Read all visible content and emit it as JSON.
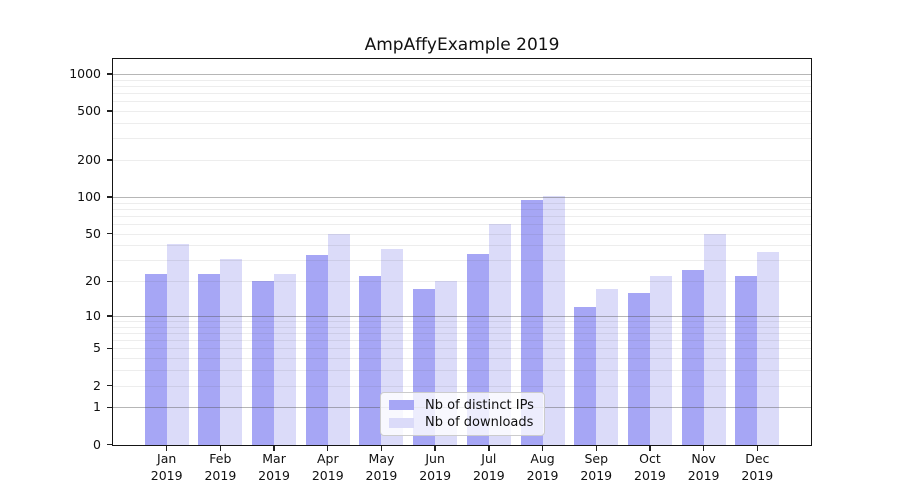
{
  "chart_data": {
    "type": "bar",
    "title": "AmpAffyExample 2019",
    "year_label": "2019",
    "categories": [
      "Jan",
      "Feb",
      "Mar",
      "Apr",
      "May",
      "Jun",
      "Jul",
      "Aug",
      "Sep",
      "Oct",
      "Nov",
      "Dec"
    ],
    "series": [
      {
        "name": "Nb of distinct IPs",
        "color": "#a6a6f5",
        "values": [
          23,
          23,
          20,
          33,
          22,
          17,
          34,
          94,
          12,
          16,
          25,
          22
        ]
      },
      {
        "name": "Nb of downloads",
        "color": "#dbdbf9",
        "values": [
          41,
          31,
          23,
          50,
          37,
          20,
          60,
          102,
          17,
          22,
          50,
          35
        ]
      }
    ],
    "xlabel": "",
    "ylabel": "",
    "y_scale": "log1p",
    "ylim": [
      0,
      1300
    ],
    "y_ticks": [
      0,
      1,
      2,
      5,
      10,
      20,
      50,
      100,
      200,
      500,
      1000
    ],
    "y_major_gridlines": [
      1,
      10,
      100,
      1000
    ],
    "y_minor_gridlines": [
      2,
      3,
      4,
      5,
      6,
      7,
      8,
      9,
      20,
      30,
      40,
      50,
      60,
      70,
      80,
      90,
      200,
      300,
      400,
      500,
      600,
      700,
      800,
      900
    ],
    "grid": "horizontal",
    "legend_position": "inside lower center"
  },
  "style": {
    "bar_color_ips": "#a6a6f5",
    "bar_color_downloads": "#dbdbf9",
    "grid_major_color": "rgba(80,80,80,0.42)",
    "grid_minor_color": "rgba(80,80,80,0.10)",
    "spine_color": "#151515",
    "text_color": "#111111",
    "legend_background": "rgba(255,255,255,0.8)",
    "legend_border": "#cccccc"
  }
}
